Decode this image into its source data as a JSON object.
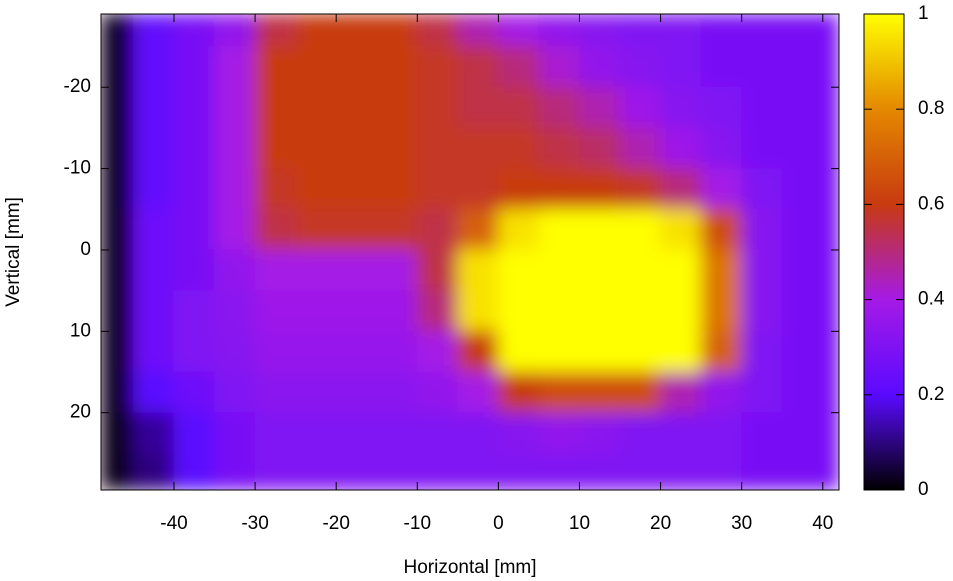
{
  "chart_data": {
    "type": "heatmap",
    "xlabel": "Horizontal [mm]",
    "ylabel": "Vertical [mm]",
    "x_edges": [
      -49,
      -45,
      -40,
      -35,
      -30,
      -25,
      -20,
      -15,
      -10,
      -5,
      0,
      5,
      10,
      15,
      20,
      25,
      30,
      35,
      40,
      42
    ],
    "y_edges": [
      -29,
      -25,
      -20,
      -15,
      -10,
      -5,
      0,
      5,
      10,
      15,
      20,
      25,
      29.5
    ],
    "z": [
      [
        0.03,
        0.22,
        0.28,
        0.35,
        0.55,
        0.6,
        0.6,
        0.6,
        0.55,
        0.45,
        0.4,
        0.35,
        0.32,
        0.3,
        0.3,
        0.28,
        0.28,
        0.28,
        0.28
      ],
      [
        0.03,
        0.22,
        0.28,
        0.4,
        0.6,
        0.6,
        0.6,
        0.6,
        0.58,
        0.55,
        0.5,
        0.42,
        0.35,
        0.32,
        0.3,
        0.28,
        0.28,
        0.28,
        0.28
      ],
      [
        0.03,
        0.22,
        0.28,
        0.4,
        0.6,
        0.6,
        0.6,
        0.6,
        0.58,
        0.55,
        0.55,
        0.5,
        0.45,
        0.38,
        0.32,
        0.3,
        0.28,
        0.28,
        0.28
      ],
      [
        0.03,
        0.22,
        0.28,
        0.4,
        0.6,
        0.6,
        0.6,
        0.6,
        0.58,
        0.58,
        0.58,
        0.55,
        0.52,
        0.45,
        0.38,
        0.32,
        0.28,
        0.28,
        0.28
      ],
      [
        0.03,
        0.22,
        0.28,
        0.4,
        0.58,
        0.6,
        0.6,
        0.6,
        0.58,
        0.58,
        0.6,
        0.6,
        0.6,
        0.58,
        0.5,
        0.4,
        0.3,
        0.28,
        0.28
      ],
      [
        0.03,
        0.25,
        0.28,
        0.4,
        0.55,
        0.58,
        0.58,
        0.58,
        0.55,
        0.7,
        0.95,
        1,
        1,
        1,
        0.95,
        0.65,
        0.32,
        0.28,
        0.28
      ],
      [
        0.03,
        0.25,
        0.28,
        0.35,
        0.4,
        0.4,
        0.4,
        0.4,
        0.55,
        0.95,
        1,
        1,
        1,
        1,
        1,
        0.75,
        0.32,
        0.28,
        0.28
      ],
      [
        0.03,
        0.25,
        0.3,
        0.33,
        0.38,
        0.38,
        0.38,
        0.38,
        0.5,
        0.95,
        1,
        1,
        1,
        1,
        1,
        0.75,
        0.32,
        0.28,
        0.28
      ],
      [
        0.03,
        0.25,
        0.3,
        0.32,
        0.36,
        0.36,
        0.36,
        0.36,
        0.4,
        0.6,
        1,
        1,
        1,
        1,
        1,
        0.7,
        0.3,
        0.28,
        0.28
      ],
      [
        0.03,
        0.2,
        0.25,
        0.3,
        0.33,
        0.33,
        0.33,
        0.33,
        0.35,
        0.4,
        0.6,
        0.65,
        0.65,
        0.65,
        0.45,
        0.35,
        0.3,
        0.28,
        0.28
      ],
      [
        0.02,
        0.12,
        0.2,
        0.28,
        0.3,
        0.3,
        0.3,
        0.3,
        0.3,
        0.3,
        0.32,
        0.35,
        0.33,
        0.3,
        0.3,
        0.3,
        0.28,
        0.28,
        0.28
      ],
      [
        0.02,
        0.1,
        0.2,
        0.28,
        0.3,
        0.3,
        0.3,
        0.3,
        0.3,
        0.3,
        0.3,
        0.3,
        0.3,
        0.3,
        0.3,
        0.3,
        0.28,
        0.28,
        0.28
      ]
    ],
    "xlim": [
      -49,
      42
    ],
    "ylim": [
      29.5,
      -29
    ],
    "xticks": [
      -40,
      -30,
      -20,
      -10,
      0,
      10,
      20,
      30,
      40
    ],
    "yticks": [
      -20,
      -10,
      0,
      10,
      20
    ],
    "zlim": [
      0,
      1
    ],
    "zticks": [
      0,
      0.2,
      0.4,
      0.6,
      0.8,
      1
    ],
    "colormap": [
      "#000000",
      "#5a0aff",
      "#a51ae6",
      "#c83a10",
      "#e48800",
      "#ffff00"
    ]
  }
}
